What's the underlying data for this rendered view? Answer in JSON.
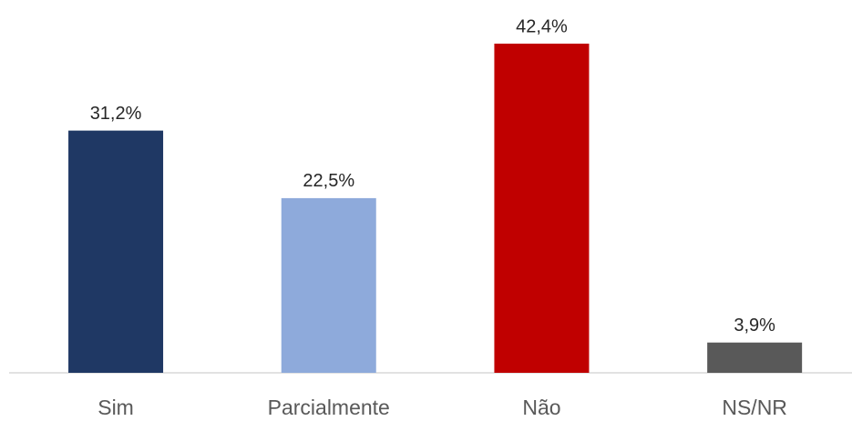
{
  "chart_data": {
    "type": "bar",
    "categories": [
      "Sim",
      "Parcialmente",
      "Não",
      "NS/NR"
    ],
    "values": [
      31.2,
      22.5,
      42.4,
      3.9
    ],
    "value_labels": [
      "31,2%",
      "22,5%",
      "42,4%",
      "3,9%"
    ],
    "colors": [
      "#1f3864",
      "#8eaadb",
      "#c00000",
      "#595959"
    ]
  }
}
